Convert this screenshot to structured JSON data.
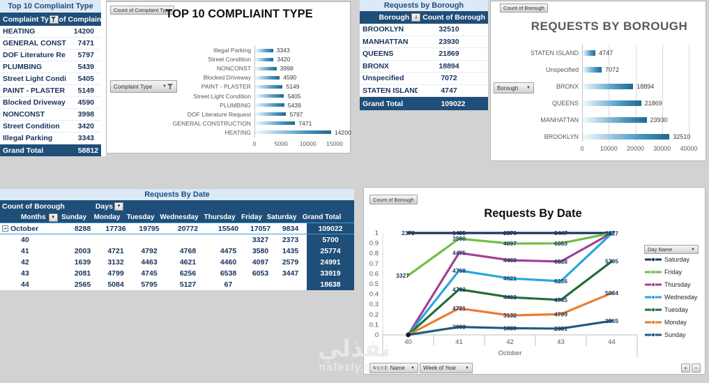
{
  "canvas": {
    "bg": "#d2d2d2"
  },
  "colors": {
    "navy": "#1f4e79",
    "light_blue": "#dce9f7",
    "october_border": "#3f9fd8",
    "bar_dark": "#20688f",
    "grey_text": "#595959",
    "label_navy": "#1f3864"
  },
  "complaint_table": {
    "title": "Top 10 Compliaint Type",
    "header": {
      "col1": "Complaint Ty",
      "col2": "of Complain"
    },
    "rows": [
      [
        "HEATING",
        "14200"
      ],
      [
        "GENERAL CONSTR",
        "7471"
      ],
      [
        "DOF Literature Re",
        "5797"
      ],
      [
        "PLUMBING",
        "5439"
      ],
      [
        "Street Light Condit",
        "5405"
      ],
      [
        "PAINT - PLASTER",
        "5149"
      ],
      [
        "Blocked Driveway",
        "4590"
      ],
      [
        "NONCONST",
        "3998"
      ],
      [
        "Street Condition",
        "3420"
      ],
      [
        "Illegal Parking",
        "3343"
      ]
    ],
    "grand_total": [
      "Grand Total",
      "58812"
    ]
  },
  "complaint_chart": {
    "value_field_button": "Count of Complaint Type",
    "axis_field_button": "Complaint Type",
    "title": "TOP 10 COMPLIAINT TYPE"
  },
  "borough_table": {
    "title": "Requests by Borough",
    "header": {
      "col1": "Borough",
      "col2": "Count of Borough"
    },
    "rows": [
      [
        "BROOKLYN",
        "32510"
      ],
      [
        "MANHATTAN",
        "23930"
      ],
      [
        "QUEENS",
        "21869"
      ],
      [
        "BRONX",
        "18894"
      ],
      [
        "Unspecified",
        "7072"
      ],
      [
        "STATEN ISLAND",
        "4747"
      ]
    ],
    "grand_total": [
      "Grand Total",
      "109022"
    ]
  },
  "borough_chart": {
    "value_field_button": "Count of Borough",
    "axis_field_button": "Borough",
    "title": "REQUESTS BY BOROUGH"
  },
  "date_table": {
    "title": "Requests By Date",
    "corner_label": "Count of Borough",
    "days_label": "Days",
    "months_label": "Months",
    "day_headers": [
      "Sunday",
      "Monday",
      "Tuesday",
      "Wednesday",
      "Thursday",
      "Friday",
      "Saturday",
      "Grand Total"
    ],
    "group_row": {
      "label": "October",
      "values": [
        "8288",
        "17736",
        "19795",
        "20772",
        "15540",
        "17057",
        "9834"
      ],
      "total": "109022"
    },
    "week_rows": [
      {
        "week": "40",
        "values": [
          "",
          "",
          "",
          "",
          "",
          "3327",
          "2373"
        ],
        "total": "5700"
      },
      {
        "week": "41",
        "values": [
          "2003",
          "4721",
          "4792",
          "4768",
          "4475",
          "3580",
          "1435"
        ],
        "total": "25774"
      },
      {
        "week": "42",
        "values": [
          "1639",
          "3132",
          "4463",
          "4621",
          "4460",
          "4097",
          "2579"
        ],
        "total": "24991"
      },
      {
        "week": "43",
        "values": [
          "2081",
          "4799",
          "4745",
          "6256",
          "6538",
          "6053",
          "3447"
        ],
        "total": "33919"
      },
      {
        "week": "44",
        "values": [
          "2565",
          "5084",
          "5795",
          "5127",
          "67",
          "",
          ""
        ],
        "total": "18638"
      }
    ]
  },
  "date_chart": {
    "value_field_button": "Count of Borough",
    "title": "Requests By Date",
    "legend_button": "Day Name",
    "month_button": "Month Name",
    "week_button": "Week of Year",
    "zoom_in": "+",
    "zoom_out": "−",
    "x_group_label": "October"
  },
  "chart_data": [
    {
      "id": "complaint",
      "type": "bar",
      "title": "TOP 10 COMPLIAINT TYPE",
      "categories": [
        "Illegal Parking",
        "Street Condition",
        "NONCONST",
        "Blocked Driveway",
        "PAINT - PLASTER",
        "Street Light Condition",
        "PLUMBING",
        "DOF Literature Request",
        "GENERAL CONSTRUCTION",
        "HEATING"
      ],
      "values": [
        3343,
        3420,
        3998,
        4590,
        5149,
        5405,
        5439,
        5797,
        7471,
        14200
      ],
      "xticks": [
        "0",
        "5000",
        "10000",
        "15000"
      ],
      "xlim": [
        0,
        15000
      ]
    },
    {
      "id": "borough",
      "type": "bar",
      "title": "REQUESTS BY BOROUGH",
      "categories": [
        "STATEN ISLAND",
        "Unspecified",
        "BRONX",
        "QUEENS",
        "MANHATTAN",
        "BROOKLYN"
      ],
      "values": [
        4747,
        7072,
        18894,
        21869,
        23930,
        32510
      ],
      "xticks": [
        "0",
        "10000",
        "20000",
        "30000",
        "40000"
      ],
      "xlim": [
        0,
        40000
      ]
    },
    {
      "id": "date",
      "type": "line",
      "subtype": "100pct-stacked",
      "title": "Requests By Date",
      "x": [
        "40",
        "41",
        "42",
        "43",
        "44"
      ],
      "x_group": "October",
      "yticks": [
        "1",
        "0.9",
        "0.8",
        "0.7",
        "0.6",
        "0.5",
        "0.4",
        "0.3",
        "0.2",
        "0.1",
        "0"
      ],
      "series": [
        {
          "name": "Sunday",
          "color": "#1f5c7a",
          "values": [
            null,
            2003,
            1639,
            2081,
            2565
          ]
        },
        {
          "name": "Monday",
          "color": "#e87d31",
          "values": [
            null,
            4721,
            3132,
            4799,
            5084
          ]
        },
        {
          "name": "Tuesday",
          "color": "#1e7035",
          "values": [
            null,
            4792,
            4463,
            4745,
            5795
          ]
        },
        {
          "name": "Wednesday",
          "color": "#2ba6de",
          "values": [
            null,
            4768,
            4621,
            6256,
            5127
          ]
        },
        {
          "name": "Thursday",
          "color": "#a23f97",
          "values": [
            null,
            4475,
            4460,
            6538,
            67
          ]
        },
        {
          "name": "Friday",
          "color": "#6fbe45",
          "values": [
            3327,
            3580,
            4097,
            6053,
            null
          ]
        },
        {
          "name": "Saturday",
          "color": "#17375e",
          "values": [
            2373,
            1435,
            2579,
            3447,
            null
          ]
        }
      ],
      "legend_order": [
        "Saturday",
        "Friday",
        "Thursday",
        "Wednesday",
        "Tuesday",
        "Monday",
        "Sunday"
      ]
    }
  ],
  "watermark": {
    "arabic": "نفذلي",
    "latin": "nafezly.com"
  }
}
